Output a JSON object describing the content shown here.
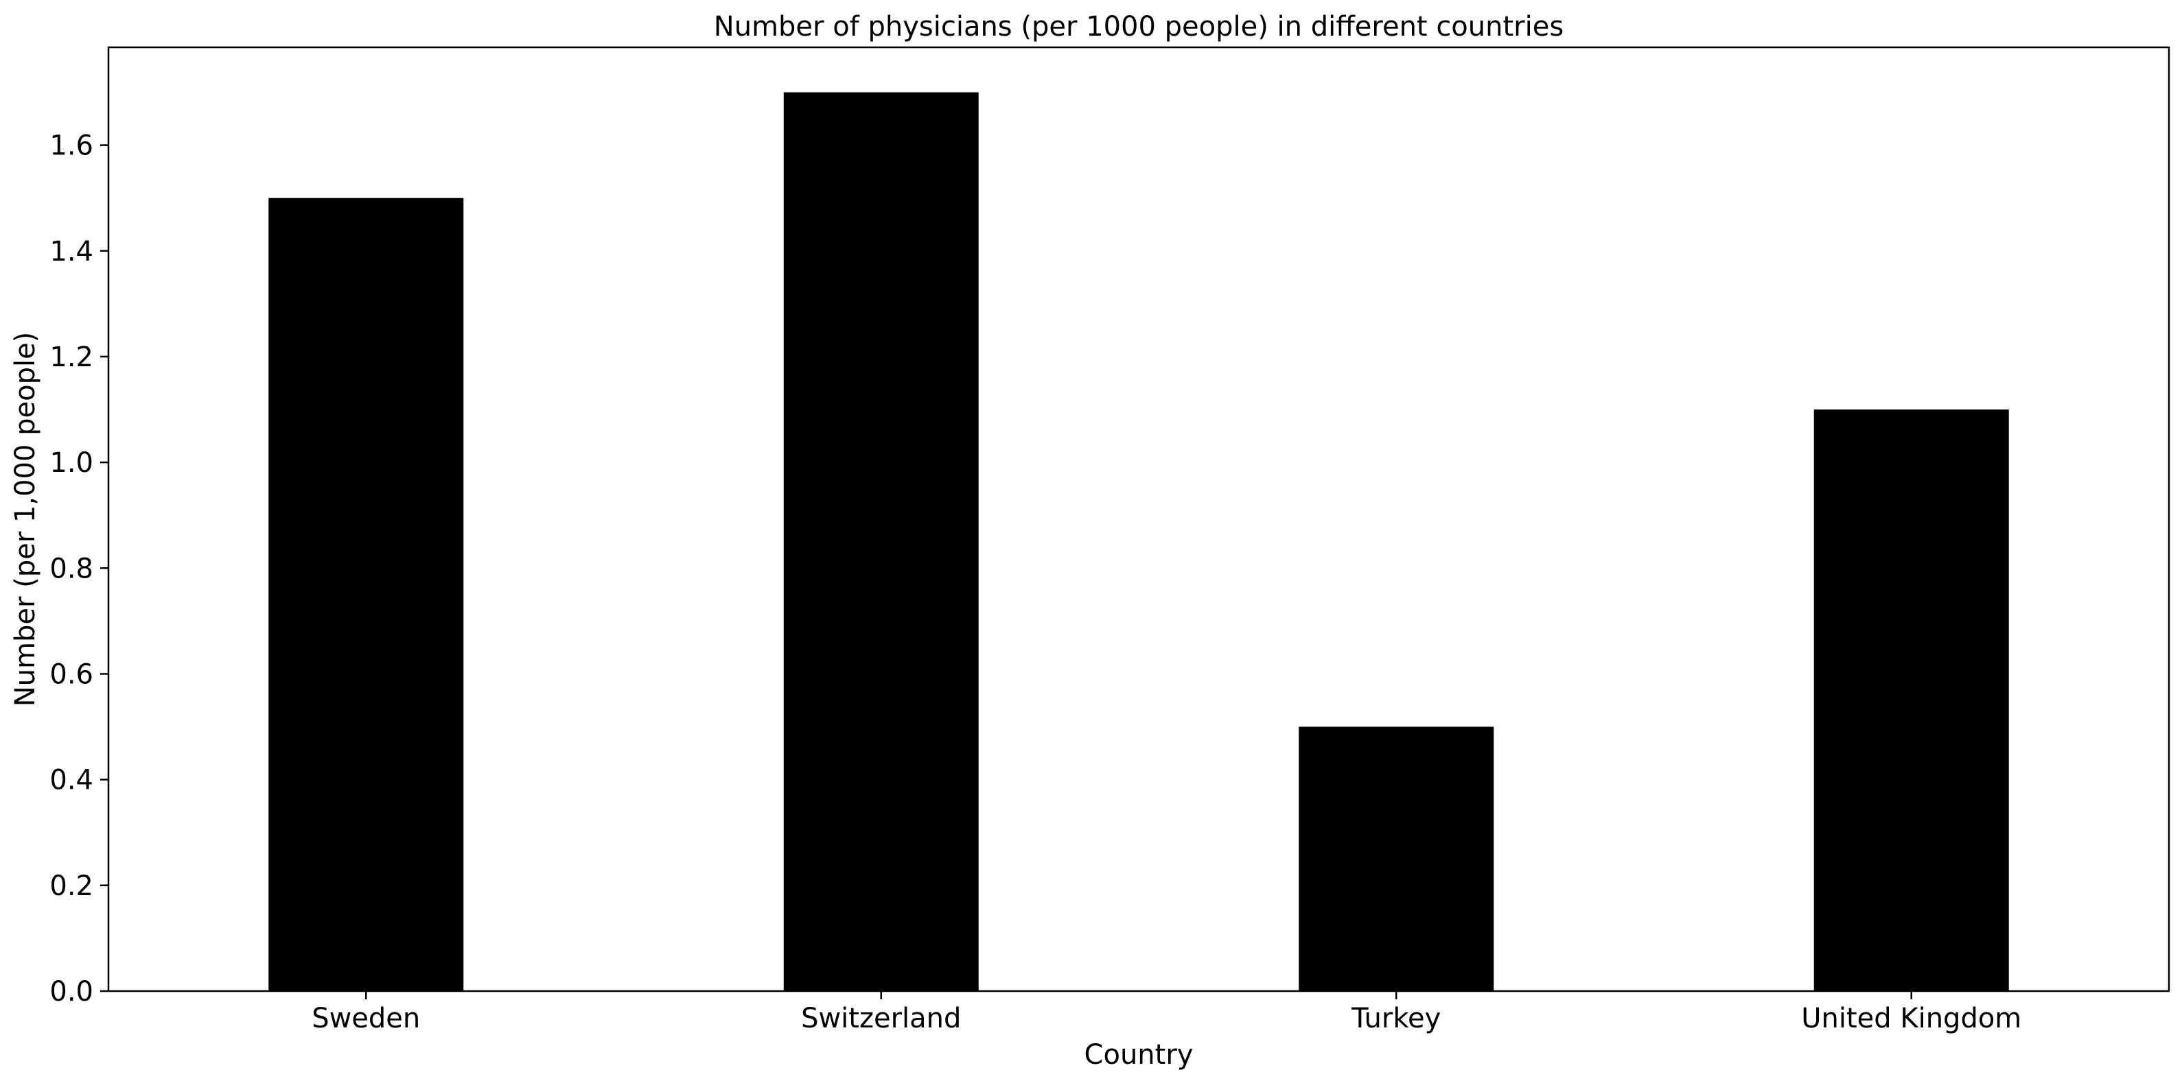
{
  "chart_data": {
    "type": "bar",
    "title": "Number of physicians (per 1000 people) in different countries",
    "xlabel": "Country",
    "ylabel": "Number (per 1,000 people)",
    "categories": [
      "Sweden",
      "Switzerland",
      "Turkey",
      "United Kingdom"
    ],
    "values": [
      1.5,
      1.7,
      0.5,
      1.1
    ],
    "ylim": [
      0,
      1.785
    ],
    "yticks": [
      0.0,
      0.2,
      0.4,
      0.6,
      0.8,
      1.0,
      1.2,
      1.4,
      1.6
    ],
    "ytick_labels": [
      "0.0",
      "0.2",
      "0.4",
      "0.6",
      "0.8",
      "1.0",
      "1.2",
      "1.4",
      "1.6"
    ],
    "bar_color": "#000000",
    "grid": false,
    "legend": "none"
  }
}
